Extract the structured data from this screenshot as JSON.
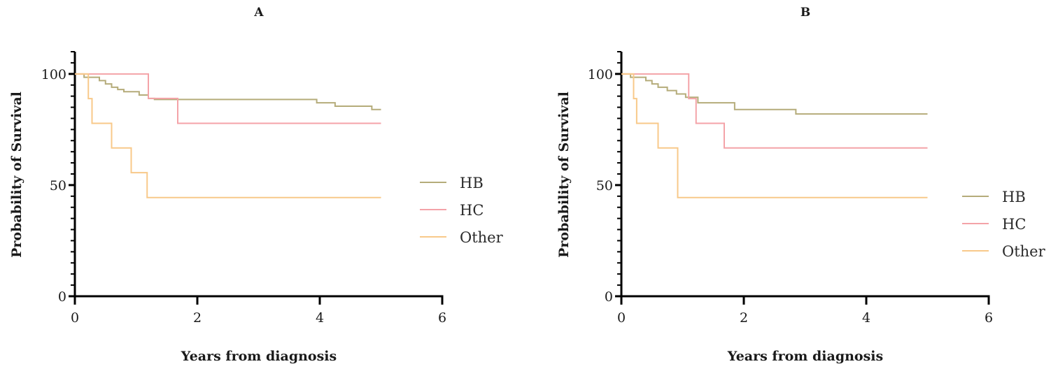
{
  "chart_data": [
    {
      "type": "line",
      "panel_label": "A",
      "xlabel": "Years from diagnosis",
      "ylabel": "Probability of Survival",
      "xlim": [
        0,
        6
      ],
      "ylim": [
        0,
        110
      ],
      "xticks": [
        "0",
        "2",
        "4",
        "6"
      ],
      "yticks": [
        "0",
        "50",
        "100"
      ],
      "legend_position": "right",
      "series": [
        {
          "name": "HB",
          "color": "#b5ac7a",
          "step_points": [
            [
              0,
              100
            ],
            [
              0.15,
              98.5
            ],
            [
              0.4,
              97
            ],
            [
              0.5,
              95.5
            ],
            [
              0.6,
              94
            ],
            [
              0.7,
              93
            ],
            [
              0.8,
              92
            ],
            [
              1.05,
              90.5
            ],
            [
              1.2,
              89
            ],
            [
              1.3,
              88.5
            ],
            [
              3.95,
              87
            ],
            [
              4.25,
              85.5
            ],
            [
              4.85,
              84
            ],
            [
              5.0,
              84
            ]
          ]
        },
        {
          "name": "HC",
          "color": "#f4a3a8",
          "step_points": [
            [
              0,
              100
            ],
            [
              1.2,
              89
            ],
            [
              1.68,
              77.8
            ],
            [
              5.0,
              77.8
            ]
          ]
        },
        {
          "name": "Other",
          "color": "#f8c98a",
          "step_points": [
            [
              0,
              100
            ],
            [
              0.22,
              88.9
            ],
            [
              0.28,
              77.8
            ],
            [
              0.6,
              66.7
            ],
            [
              0.92,
              55.6
            ],
            [
              1.18,
              44.4
            ],
            [
              5.0,
              44.4
            ]
          ]
        }
      ]
    },
    {
      "type": "line",
      "panel_label": "B",
      "xlabel": "Years from diagnosis",
      "ylabel": "Probability of Survival",
      "xlim": [
        0,
        6
      ],
      "ylim": [
        0,
        110
      ],
      "xticks": [
        "0",
        "2",
        "4",
        "6"
      ],
      "yticks": [
        "0",
        "50",
        "100"
      ],
      "legend_position": "right",
      "series": [
        {
          "name": "HB",
          "color": "#b5ac7a",
          "step_points": [
            [
              0,
              100
            ],
            [
              0.15,
              98.5
            ],
            [
              0.4,
              97
            ],
            [
              0.5,
              95.5
            ],
            [
              0.6,
              94
            ],
            [
              0.75,
              92.5
            ],
            [
              0.9,
              91
            ],
            [
              1.05,
              89.5
            ],
            [
              1.25,
              87
            ],
            [
              1.85,
              84
            ],
            [
              2.85,
              82
            ],
            [
              5.0,
              82
            ]
          ]
        },
        {
          "name": "HC",
          "color": "#f4a3a8",
          "step_points": [
            [
              0,
              100
            ],
            [
              1.1,
              88.9
            ],
            [
              1.22,
              77.8
            ],
            [
              1.68,
              66.7
            ],
            [
              5.0,
              66.7
            ]
          ]
        },
        {
          "name": "Other",
          "color": "#f8c98a",
          "step_points": [
            [
              0,
              100
            ],
            [
              0.2,
              88.9
            ],
            [
              0.25,
              77.8
            ],
            [
              0.6,
              66.7
            ],
            [
              0.92,
              44.4
            ],
            [
              5.0,
              44.4
            ]
          ]
        }
      ]
    }
  ]
}
